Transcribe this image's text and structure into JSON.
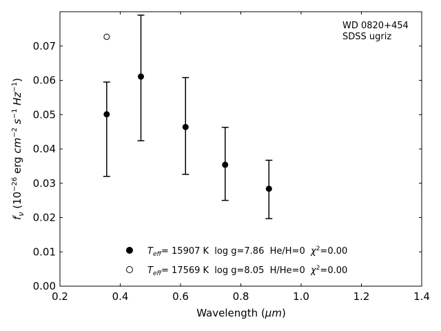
{
  "chart_data": {
    "type": "scatter",
    "xlabel_main": "Wavelength (",
    "xlabel_unit": "μm",
    "xlabel_end": ")",
    "ylabel": "fν (10⁻²⁶ erg cm⁻² s⁻¹ Hz⁻¹)",
    "xlim": [
      0.2,
      1.4
    ],
    "ylim": [
      0.0,
      0.08
    ],
    "xticks": [
      "0.2",
      "0.4",
      "0.6",
      "0.8",
      "1.0",
      "1.2",
      "1.4"
    ],
    "yticks": [
      "0.00",
      "0.01",
      "0.02",
      "0.03",
      "0.04",
      "0.05",
      "0.06",
      "0.07"
    ],
    "grid": false,
    "annotation": [
      "WD 0820+454",
      "SDSS ugriz"
    ],
    "observed": {
      "x": [
        0.3551,
        0.4686,
        0.6166,
        0.748,
        0.8932
      ],
      "y": [
        0.0501,
        0.0611,
        0.0464,
        0.0354,
        0.0284
      ],
      "yerr_low": [
        0.0181,
        0.0187,
        0.0138,
        0.0104,
        0.0087
      ],
      "yerr_high": [
        0.0094,
        0.0179,
        0.0144,
        0.0109,
        0.0083
      ]
    },
    "series": [
      {
        "marker": "filled-circle",
        "label": "T_eff= 15907 K  log g=7.86  He/H=0  χ²=0.00",
        "x": [],
        "y": []
      },
      {
        "marker": "open-circle",
        "label": "T_eff= 17569 K  log g=8.05  H/He=0  χ²=0.00",
        "x": [
          0.3551
        ],
        "y": [
          0.0727
        ]
      }
    ],
    "legend": {
      "placement": "bottom-center",
      "entries": [
        {
          "marker": "filled-circle",
          "prefix": "T",
          "sub": "eff",
          "teff": "= 15907 K",
          "logg": "log g=7.86",
          "comp": "He/H=0",
          "chi": "=0.00"
        },
        {
          "marker": "open-circle",
          "prefix": "T",
          "sub": "eff",
          "teff": "= 17569 K",
          "logg": "log g=8.05",
          "comp": "H/He=0",
          "chi": "=0.00"
        }
      ]
    }
  }
}
